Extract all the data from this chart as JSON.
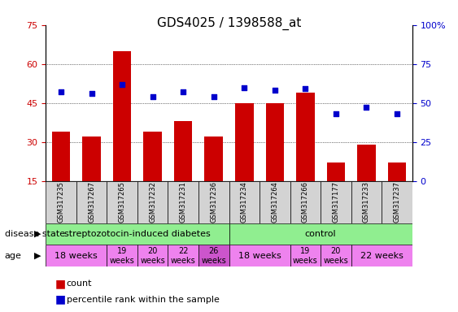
{
  "title": "GDS4025 / 1398588_at",
  "samples": [
    "GSM317235",
    "GSM317267",
    "GSM317265",
    "GSM317232",
    "GSM317231",
    "GSM317236",
    "GSM317234",
    "GSM317264",
    "GSM317266",
    "GSM317177",
    "GSM317233",
    "GSM317237"
  ],
  "counts": [
    34,
    32,
    65,
    34,
    38,
    32,
    45,
    45,
    49,
    22,
    29,
    22
  ],
  "percentiles": [
    57,
    56,
    62,
    54,
    57,
    54,
    60,
    58,
    59,
    43,
    47,
    43
  ],
  "ylim_left": [
    15,
    75
  ],
  "ylim_right": [
    0,
    100
  ],
  "yticks_left": [
    15,
    30,
    45,
    60,
    75
  ],
  "yticks_right": [
    0,
    25,
    50,
    75,
    100
  ],
  "bar_color": "#cc0000",
  "dot_color": "#0000cc",
  "grid_color": "#000000",
  "disease_state_groups": [
    {
      "label": "streptozotocin-induced diabetes",
      "start": 0,
      "end": 6,
      "color": "#90ee90"
    },
    {
      "label": "control",
      "start": 6,
      "end": 12,
      "color": "#90ee90"
    }
  ],
  "age_groups": [
    {
      "label": "18 weeks",
      "samples": [
        0,
        0
      ],
      "start": 0,
      "end": 1,
      "color": "#ee82ee"
    },
    {
      "label": "19\nweeks",
      "start": 1,
      "end": 2,
      "color": "#ee82ee"
    },
    {
      "label": "20\nweeks",
      "start": 2,
      "end": 3,
      "color": "#ee82ee"
    },
    {
      "label": "22\nweeks",
      "start": 3,
      "end": 4,
      "color": "#ee82ee"
    },
    {
      "label": "26\nweeks",
      "start": 4,
      "end": 5,
      "color": "#dd66dd"
    },
    {
      "label": "18 weeks",
      "start": 6,
      "end": 7,
      "color": "#ee82ee"
    },
    {
      "label": "19\nweeks",
      "start": 7,
      "end": 8,
      "color": "#ee82ee"
    },
    {
      "label": "20\nweeks",
      "start": 8,
      "end": 9,
      "color": "#ee82ee"
    },
    {
      "label": "22 weeks",
      "start": 9,
      "end": 12,
      "color": "#ee82ee"
    }
  ],
  "label_count": "count",
  "label_percentile": "percentile rank within the sample",
  "axis_label_color_left": "#cc0000",
  "axis_label_color_right": "#0000cc",
  "background_color": "#ffffff",
  "tick_area_color": "#d3d3d3"
}
